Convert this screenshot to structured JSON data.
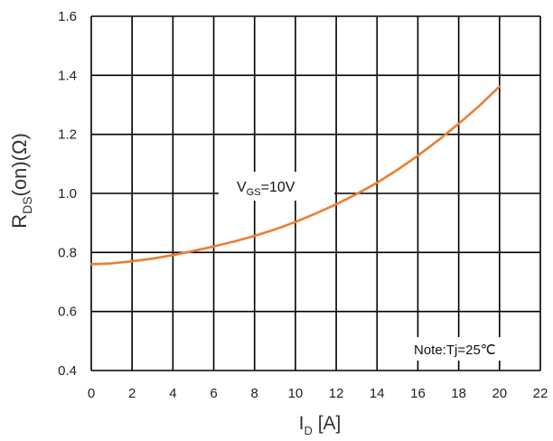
{
  "chart_data": {
    "type": "line",
    "xlabel": {
      "main": "I",
      "sub": "D",
      "rest": " [A]"
    },
    "ylabel": {
      "main": "R",
      "sub": "DS",
      "rest": "(on)(Ω)"
    },
    "xlim": [
      0,
      22
    ],
    "ylim": [
      0.4,
      1.6
    ],
    "x_ticks": [
      "0",
      "2",
      "4",
      "6",
      "8",
      "10",
      "12",
      "14",
      "16",
      "18",
      "20",
      "22"
    ],
    "y_ticks": [
      "0.4",
      "0.6",
      "0.8",
      "1.0",
      "1.2",
      "1.4",
      "1.6"
    ],
    "grid": true,
    "series": [
      {
        "color": "#ED7D31",
        "x": [
          0,
          1,
          2,
          3,
          4,
          5,
          6,
          7,
          8,
          9,
          10,
          11,
          12,
          13,
          14,
          15,
          16,
          17,
          18,
          19,
          20
        ],
        "y": [
          0.76,
          0.763,
          0.77,
          0.779,
          0.791,
          0.805,
          0.82,
          0.837,
          0.856,
          0.878,
          0.903,
          0.932,
          0.963,
          0.998,
          1.036,
          1.08,
          1.128,
          1.18,
          1.236,
          1.296,
          1.362
        ]
      }
    ],
    "annotations": [
      {
        "main": "V",
        "sub": "GS",
        "rest": "=10V"
      },
      {
        "text": "Note:Tj=25℃"
      }
    ]
  }
}
